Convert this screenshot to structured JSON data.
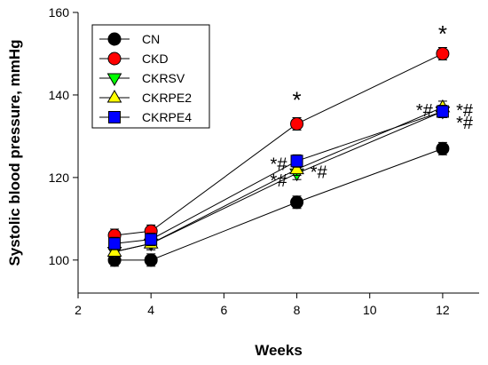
{
  "chart_data": {
    "type": "line",
    "xlabel": "Weeks",
    "ylabel": "Systolic blood pressure, mmHg",
    "xlim": [
      2,
      13
    ],
    "ylim": [
      92,
      160
    ],
    "xticks": [
      2,
      4,
      6,
      8,
      10,
      12
    ],
    "yticks": [
      100,
      120,
      140,
      160
    ],
    "x": [
      3,
      4,
      8,
      12
    ],
    "legend_position": "top-left",
    "grid": false,
    "series": [
      {
        "name": "CN",
        "marker": "circle",
        "color": "#000000",
        "values": [
          100,
          100,
          114,
          127
        ],
        "err": [
          1.5,
          1.5,
          1.5,
          1.5
        ]
      },
      {
        "name": "CKD",
        "marker": "circle",
        "color": "#ff0000",
        "values": [
          106,
          107,
          133,
          150
        ],
        "err": [
          1.5,
          1.5,
          1.5,
          1.5
        ]
      },
      {
        "name": "CKRSV",
        "marker": "triangle-down",
        "color": "#00ff00",
        "values": [
          102,
          104,
          121,
          136
        ],
        "err": [
          1.5,
          1.5,
          1.5,
          1.5
        ]
      },
      {
        "name": "CKRPE2",
        "marker": "triangle-up",
        "color": "#ffff00",
        "values": [
          102,
          104,
          122,
          137
        ],
        "err": [
          1.5,
          1.5,
          1.5,
          1.5
        ]
      },
      {
        "name": "CKRPE4",
        "marker": "square",
        "color": "#0000ff",
        "values": [
          104,
          105,
          124,
          136
        ],
        "err": [
          1.5,
          1.5,
          1.5,
          1.5
        ]
      }
    ],
    "annotations": [
      {
        "text": "*",
        "x": 8,
        "y": 139
      },
      {
        "text": "*",
        "x": 12,
        "y": 155
      },
      {
        "text": "*#",
        "x": 7.5,
        "y": 124
      },
      {
        "text": "*#",
        "x": 7.5,
        "y": 120
      },
      {
        "text": "*#",
        "x": 8.6,
        "y": 122
      },
      {
        "text": "*#",
        "x": 11.5,
        "y": 137
      },
      {
        "text": "*#",
        "x": 12.6,
        "y": 137
      },
      {
        "text": "*#",
        "x": 12.6,
        "y": 134
      }
    ]
  }
}
